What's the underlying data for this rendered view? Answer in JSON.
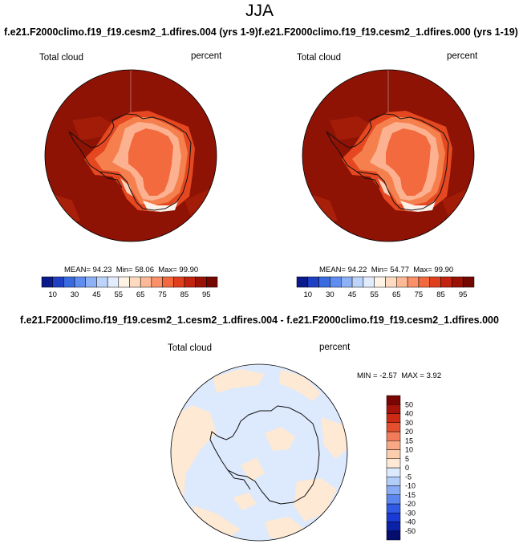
{
  "header": {
    "season": "JJA",
    "case_test": "f.e21.F2000climo.f19_f19.cesm2_1.dfires.004 (yrs 1-9)",
    "case_ctrl": "f.e21.F2000climo.f19_f19.cesm2_1.dfires.000 (yrs 1-19)",
    "diff_title": "f.e21.F2000climo.f19_f19.cesm2_1.cesm2_1.dfires.004 - f.e21.F2000climo.f19_f19.cesm2_1.dfires.000"
  },
  "panels": {
    "test": {
      "variable": "Total cloud",
      "units": "percent",
      "mean_label": "MEAN=",
      "mean": "94.23",
      "min_label": "Min=",
      "min": "58.06",
      "max_label": "Max=",
      "max": "99.90"
    },
    "ctrl": {
      "variable": "Total cloud",
      "units": "percent",
      "mean_label": "MEAN=",
      "mean": "94.22",
      "min_label": "Min=",
      "min": "54.77",
      "max_label": "Max=",
      "max": "99.90"
    },
    "diff": {
      "variable": "Total cloud",
      "units": "percent",
      "min_label": "MIN =",
      "min": "-2.57",
      "max_label": "MAX =",
      "max": "3.92"
    }
  },
  "chart_data": [
    {
      "type": "heatmap",
      "projection": "south-polar-stereographic",
      "title": "Total cloud",
      "units": "percent",
      "colorbar": {
        "orientation": "horizontal",
        "colors": [
          "#0a1a8c",
          "#1f3fc4",
          "#3a6ae0",
          "#5f8ef0",
          "#8eb1f6",
          "#bcd3fa",
          "#e2ecfd",
          "#fff3e6",
          "#fedac0",
          "#fdb996",
          "#fb9168",
          "#f3693f",
          "#e03f1e",
          "#c2230f",
          "#9b1204",
          "#740800"
        ],
        "tick_labels": [
          "10",
          "30",
          "45",
          "55",
          "65",
          "75",
          "85",
          "95"
        ]
      },
      "stats": {
        "mean": 94.23,
        "min": 58.06,
        "max": 99.9
      }
    },
    {
      "type": "heatmap",
      "projection": "south-polar-stereographic",
      "title": "Total cloud",
      "units": "percent",
      "colorbar": {
        "orientation": "horizontal",
        "colors": [
          "#0a1a8c",
          "#1f3fc4",
          "#3a6ae0",
          "#5f8ef0",
          "#8eb1f6",
          "#bcd3fa",
          "#e2ecfd",
          "#fff3e6",
          "#fedac0",
          "#fdb996",
          "#fb9168",
          "#f3693f",
          "#e03f1e",
          "#c2230f",
          "#9b1204",
          "#740800"
        ],
        "tick_labels": [
          "10",
          "30",
          "45",
          "55",
          "65",
          "75",
          "85",
          "95"
        ]
      },
      "stats": {
        "mean": 94.22,
        "min": 54.77,
        "max": 99.9
      }
    },
    {
      "type": "heatmap",
      "projection": "south-polar-stereographic",
      "title": "Total cloud",
      "units": "percent",
      "colorbar": {
        "orientation": "vertical",
        "colors": [
          "#050d6e",
          "#0b22a8",
          "#1a3ad6",
          "#2f5ae6",
          "#5b86ef",
          "#87abf5",
          "#b3cdf9",
          "#dde9fd",
          "#fde9d4",
          "#fbcfae",
          "#f8a883",
          "#f27c59",
          "#e44f2e",
          "#cc2a14",
          "#a6130a",
          "#7a0503"
        ],
        "tick_labels": [
          "50",
          "40",
          "30",
          "20",
          "15",
          "10",
          "5",
          "0",
          "-5",
          "-10",
          "-15",
          "-20",
          "-30",
          "-40",
          "-50"
        ]
      },
      "stats": {
        "min": -2.57,
        "max": 3.92
      }
    }
  ]
}
